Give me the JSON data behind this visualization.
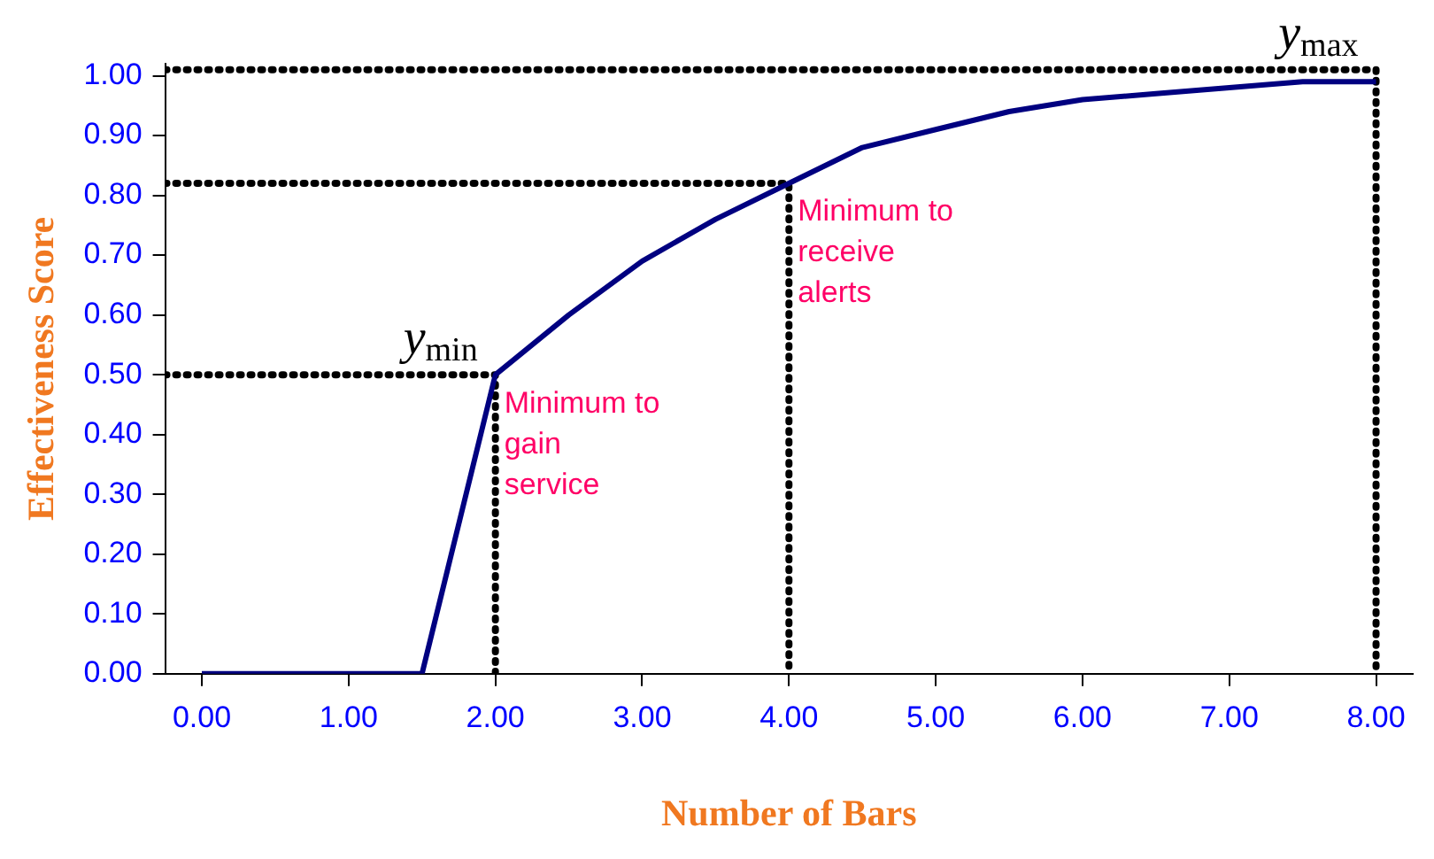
{
  "chart_data": {
    "type": "line",
    "xlabel": "Number of Bars",
    "ylabel": "Effectiveness Score",
    "x": [
      0,
      0.5,
      1,
      1.5,
      2,
      2.5,
      3,
      3.5,
      4,
      4.5,
      5,
      5.5,
      6,
      6.5,
      7,
      7.5,
      8
    ],
    "series": [
      {
        "color": "#000080",
        "values": [
          0,
          0,
          0,
          0,
          0.5,
          0.6,
          0.69,
          0.76,
          0.82,
          0.88,
          0.91,
          0.94,
          0.96,
          0.97,
          0.98,
          0.99,
          0.99
        ]
      },
      {
        "type": "line",
        "x": [
          -0.25,
          2,
          2
        ],
        "values": [
          0.5,
          0.5,
          0
        ],
        "color": "#000000",
        "line_style": "dotted"
      },
      {
        "type": "line",
        "x": [
          -0.25,
          4,
          4
        ],
        "values": [
          0.82,
          0.82,
          0
        ],
        "color": "#000000",
        "line_style": "dotted"
      },
      {
        "type": "line",
        "x": [
          -0.25,
          8,
          8
        ],
        "values": [
          1.01,
          1.01,
          0
        ],
        "color": "#000000",
        "line_style": "dotted"
      }
    ],
    "xlim": [
      -0.25,
      8.25
    ],
    "xticks": [
      {
        "value": 0,
        "label": "0.00"
      },
      {
        "value": 1,
        "label": "1.00"
      },
      {
        "value": 2,
        "label": "2.00"
      },
      {
        "value": 3,
        "label": "3.00"
      },
      {
        "value": 4,
        "label": "4.00"
      },
      {
        "value": 5,
        "label": "5.00"
      },
      {
        "value": 6,
        "label": "6.00"
      },
      {
        "value": 7,
        "label": "7.00"
      },
      {
        "value": 8,
        "label": "8.00"
      }
    ],
    "ylim": [
      0,
      1.02
    ],
    "yticks": [
      {
        "value": 0,
        "label": "0.00"
      },
      {
        "value": 0.1,
        "label": "0.10"
      },
      {
        "value": 0.2,
        "label": "0.20"
      },
      {
        "value": 0.3,
        "label": "0.30"
      },
      {
        "value": 0.4,
        "label": "0.40"
      },
      {
        "value": 0.5,
        "label": "0.50"
      },
      {
        "value": 0.6,
        "label": "0.60"
      },
      {
        "value": 0.7,
        "label": "0.70"
      },
      {
        "value": 0.8,
        "label": "0.80"
      },
      {
        "value": 0.9,
        "label": "0.90"
      },
      {
        "value": 1,
        "label": "1.00"
      }
    ],
    "annotations": [
      {
        "text": "y$_{min}$",
        "x": 2,
        "y": 0.5
      },
      {
        "text": "Minimum to gain service",
        "x": 2,
        "y": 0.5
      },
      {
        "text": "Minimum to receive alerts",
        "x": 4,
        "y": 0.82
      },
      {
        "text": "y$_{max}$",
        "x": 8,
        "y": 1.01
      }
    ],
    "grid": false,
    "legend": false,
    "marker": "none",
    "line_style": "solid"
  }
}
